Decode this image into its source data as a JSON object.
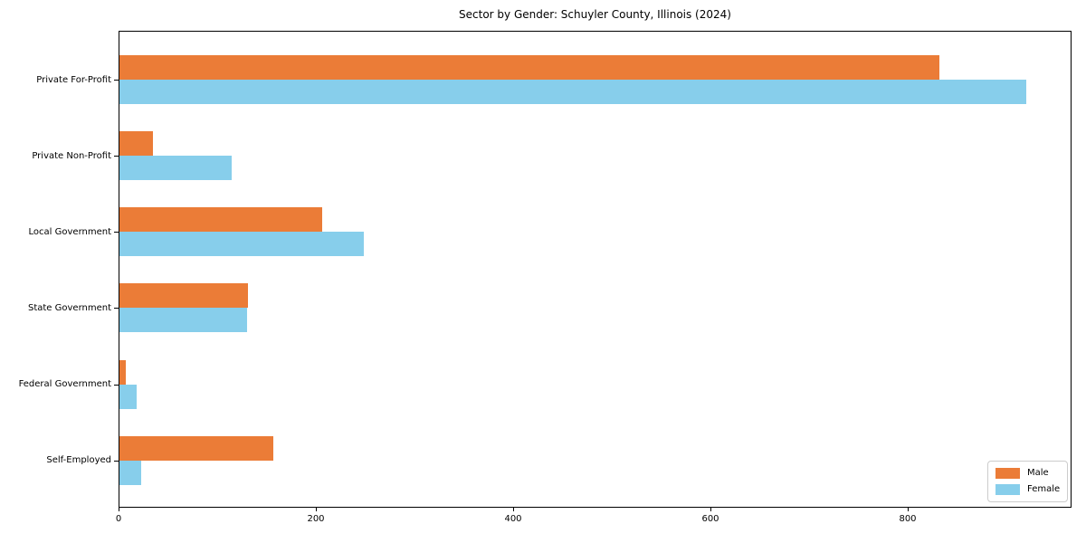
{
  "chart_data": {
    "type": "bar",
    "orientation": "horizontal",
    "title": "Sector by Gender: Schuyler County, Illinois (2024)",
    "categories": [
      "Private For-Profit",
      "Private Non-Profit",
      "Local Government",
      "State Government",
      "Federal Government",
      "Self-Employed"
    ],
    "series": [
      {
        "name": "Male",
        "color": "#EB7C37",
        "values": [
          832,
          35,
          206,
          131,
          7,
          157
        ]
      },
      {
        "name": "Female",
        "color": "#87CEEB",
        "values": [
          920,
          115,
          249,
          130,
          18,
          23
        ]
      }
    ],
    "xlabel": "",
    "ylabel": "",
    "xlim": [
      0,
      966
    ],
    "xticks": [
      0,
      200,
      400,
      600,
      800
    ],
    "grid": false,
    "legend": {
      "position": "lower right",
      "labels": [
        "Male",
        "Female"
      ]
    }
  },
  "colors": {
    "male_bar": "#EB7C37",
    "female_bar": "#87CEEB",
    "axis": "#000000",
    "legend_border": "#cccccc",
    "background": "#ffffff",
    "text": "#000000"
  }
}
